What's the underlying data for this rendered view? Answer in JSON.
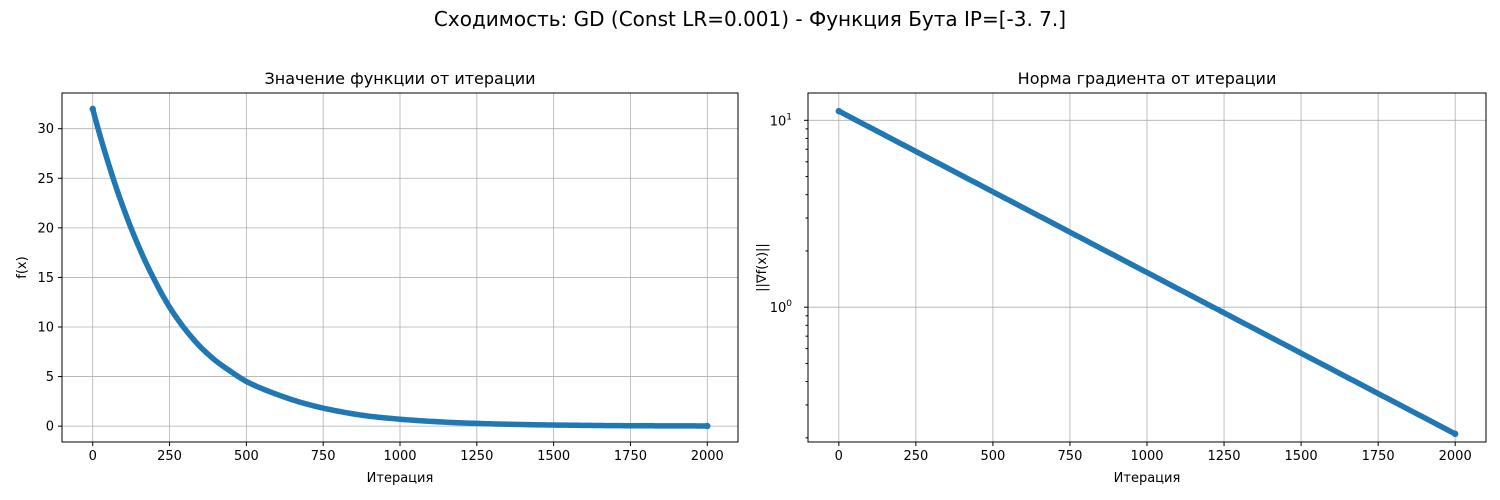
{
  "figure": {
    "suptitle": "Сходимость: GD (Const LR=0.001) - Функция Бута IP=[-3.  7.]"
  },
  "chart_data": [
    {
      "type": "line",
      "title": "Значение функции от итерации",
      "xlabel": "Итерация",
      "ylabel": "f(x)",
      "xlim": [
        -100,
        2100
      ],
      "ylim": [
        -1.6,
        33.6
      ],
      "xscale": "linear",
      "yscale": "linear",
      "xticks": [
        0,
        250,
        500,
        750,
        1000,
        1250,
        1500,
        1750,
        2000
      ],
      "yticks": [
        0,
        5,
        10,
        15,
        20,
        25,
        30
      ],
      "xtick_labels": [
        "0",
        "250",
        "500",
        "750",
        "1000",
        "1250",
        "1500",
        "1750",
        "2000"
      ],
      "ytick_labels": [
        "0",
        "5",
        "10",
        "15",
        "20",
        "25",
        "30"
      ],
      "grid": true,
      "marker": "point",
      "color": "#1f77b4",
      "series": [
        {
          "x": [
            0,
            50,
            100,
            150,
            200,
            250,
            300,
            350,
            400,
            450,
            500,
            600,
            700,
            800,
            900,
            1000,
            1100,
            1200,
            1300,
            1400,
            1500,
            1600,
            1700,
            1800,
            1900,
            2000
          ],
          "values": [
            32.0,
            26.6,
            22.0,
            18.1,
            14.8,
            12.0,
            9.8,
            8.0,
            6.6,
            5.5,
            4.5,
            3.2,
            2.2,
            1.5,
            1.0,
            0.7,
            0.48,
            0.33,
            0.23,
            0.16,
            0.11,
            0.08,
            0.05,
            0.035,
            0.025,
            0.018
          ]
        }
      ]
    },
    {
      "type": "line",
      "title": "Норма градиента от итерации",
      "xlabel": "Итерация",
      "ylabel": "||∇f(x)||",
      "xlim": [
        -100,
        2100
      ],
      "ylim": [
        0.19,
        14
      ],
      "xscale": "linear",
      "yscale": "log",
      "xticks": [
        0,
        250,
        500,
        750,
        1000,
        1250,
        1500,
        1750,
        2000
      ],
      "xtick_labels": [
        "0",
        "250",
        "500",
        "750",
        "1000",
        "1250",
        "1500",
        "1750",
        "2000"
      ],
      "yticks_major": [
        1,
        10
      ],
      "ytick_labels": [
        "10",
        "10"
      ],
      "ytick_exponents": [
        "0",
        "1"
      ],
      "grid": true,
      "marker": "point",
      "color": "#1f77b4",
      "series": [
        {
          "x": [
            0,
            2000
          ],
          "values": [
            11.2,
            0.21
          ]
        }
      ]
    }
  ]
}
